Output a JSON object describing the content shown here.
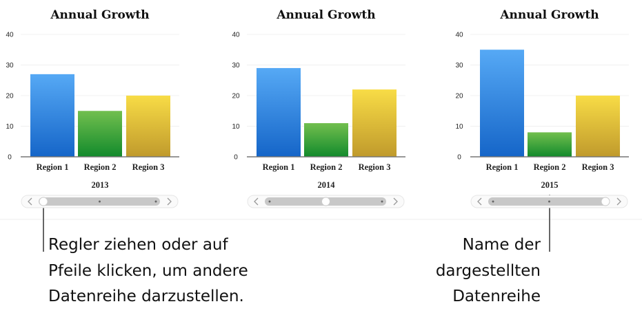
{
  "chart_data": [
    {
      "type": "bar",
      "title": "Annual Growth",
      "categories": [
        "Region 1",
        "Region 2",
        "Region 3"
      ],
      "values": [
        27,
        15,
        20
      ],
      "xlabel": "2013",
      "ylim": [
        0,
        40
      ],
      "yticks": [
        0,
        10,
        20,
        30,
        40
      ],
      "grid": true,
      "colors": [
        "#2f7fdf",
        "#3aa03a",
        "#e0c030"
      ]
    },
    {
      "type": "bar",
      "title": "Annual Growth",
      "categories": [
        "Region 1",
        "Region 2",
        "Region 3"
      ],
      "values": [
        29,
        11,
        22
      ],
      "xlabel": "2014",
      "ylim": [
        0,
        40
      ],
      "yticks": [
        0,
        10,
        20,
        30,
        40
      ],
      "grid": true,
      "colors": [
        "#2f7fdf",
        "#3aa03a",
        "#e0c030"
      ]
    },
    {
      "type": "bar",
      "title": "Annual Growth",
      "categories": [
        "Region 1",
        "Region 2",
        "Region 3"
      ],
      "values": [
        35,
        8,
        20
      ],
      "xlabel": "2015",
      "ylim": [
        0,
        40
      ],
      "yticks": [
        0,
        10,
        20,
        30,
        40
      ],
      "grid": true,
      "colors": [
        "#2f7fdf",
        "#3aa03a",
        "#e0c030"
      ]
    }
  ],
  "sliders": [
    {
      "position": 0.0,
      "steps": 3
    },
    {
      "position": 0.5,
      "steps": 3
    },
    {
      "position": 1.0,
      "steps": 3
    }
  ],
  "callouts": {
    "left": [
      "Regler ziehen oder auf",
      "Pfeile klicken, um andere",
      "Datenreihe darzustellen."
    ],
    "right": [
      "Name der",
      "dargestellten",
      "Datenreihe"
    ]
  }
}
